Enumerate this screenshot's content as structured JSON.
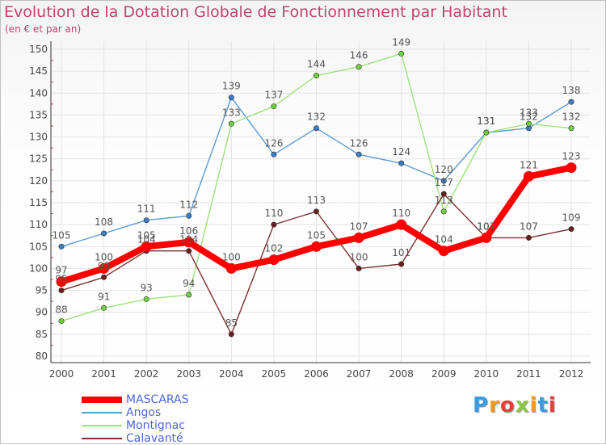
{
  "header": {
    "title": "Evolution de la Dotation Globale de Fonctionnement par Habitant",
    "subtitle": "(en € et par an)"
  },
  "logo": {
    "text": "Proxiti",
    "colors": [
      "#3b9be0",
      "#f29a1e",
      "#e2413b",
      "#8cc63f",
      "#f29a1e",
      "#3b9be0",
      "#e2413b"
    ]
  },
  "chart_data": {
    "type": "line",
    "title": "Evolution de la Dotation Globale de Fonctionnement par Habitant",
    "subtitle": "(en € et par an)",
    "x": [
      "2000",
      "2001",
      "2002",
      "2003",
      "2004",
      "2005",
      "2006",
      "2007",
      "2008",
      "2009",
      "2010",
      "2011",
      "2012"
    ],
    "ylim": [
      80,
      150
    ],
    "yticks": [
      "80",
      "85",
      "90",
      "95",
      "100",
      "105",
      "110",
      "115",
      "120",
      "125",
      "130",
      "135",
      "140",
      "145",
      "150"
    ],
    "grid": true,
    "legend_position": "bottom-left",
    "series": [
      {
        "name": "Angos",
        "color": "#5b9bd5",
        "dot": "#3a7dc4",
        "values": [
          105,
          108,
          111,
          112,
          139,
          126,
          132,
          126,
          124,
          120,
          131,
          132,
          138
        ]
      },
      {
        "name": "Montignac",
        "color": "#9ee27a",
        "dot": "#6fcf3f",
        "values": [
          88,
          91,
          93,
          94,
          133,
          137,
          144,
          146,
          149,
          113,
          131,
          133,
          132
        ]
      },
      {
        "name": "Calavanté",
        "color": "#7b3030",
        "dot": "#6a1f1f",
        "values": [
          95,
          98,
          104,
          104,
          85,
          110,
          113,
          100,
          101,
          117,
          107,
          107,
          109
        ]
      },
      {
        "name": "MASCARAS",
        "color": "#ff0000",
        "dot": "#ff0000",
        "values": [
          97,
          100,
          105,
          106,
          100,
          102,
          105,
          107,
          110,
          104,
          107,
          121,
          123
        ]
      }
    ]
  }
}
